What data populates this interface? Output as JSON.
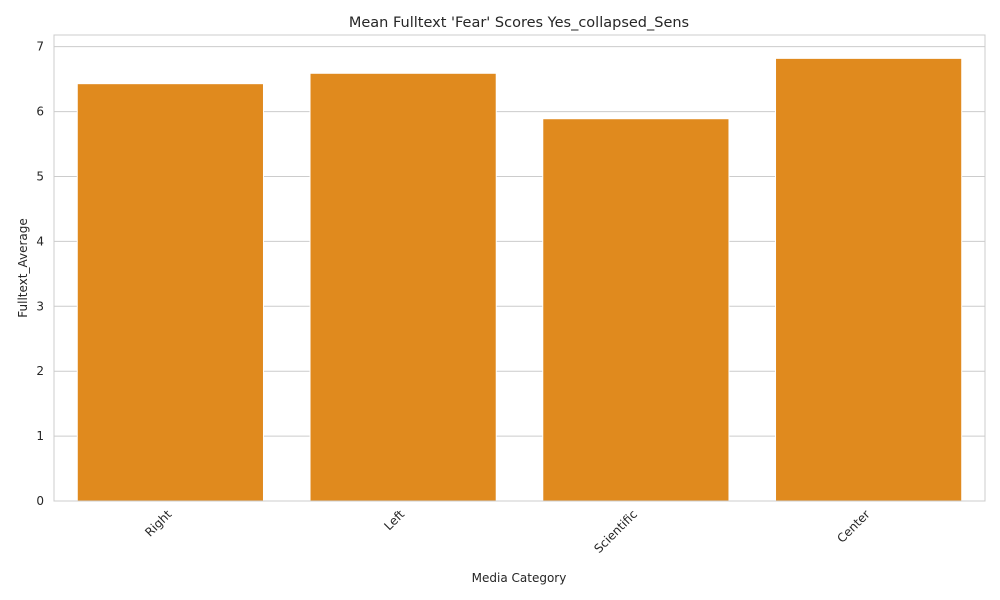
{
  "chart_data": {
    "type": "bar",
    "title": "Mean Fulltext 'Fear' Scores Yes_collapsed_Sens",
    "xlabel": "Media Category",
    "ylabel": "Fulltext_Average",
    "categories": [
      "Right",
      "Left",
      "Scientific",
      "Center"
    ],
    "values": [
      6.43,
      6.59,
      5.89,
      6.82
    ],
    "ylim": [
      0,
      7.18
    ],
    "yticks": [
      "0",
      "1",
      "2",
      "3",
      "4",
      "5",
      "6",
      "7"
    ],
    "grid": "horizontal",
    "bar_color": "#e08a1e",
    "grid_color": "#cccccc",
    "text_color": "#262626"
  }
}
